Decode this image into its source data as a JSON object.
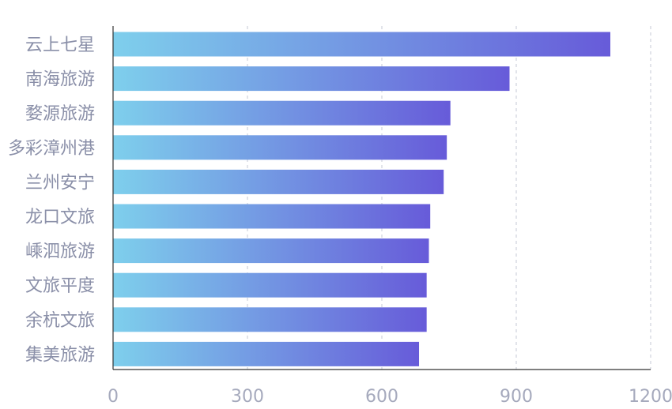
{
  "chart_data": {
    "type": "bar",
    "orientation": "horizontal",
    "categories": [
      "云上七星",
      "南海旅游",
      "婺源旅游",
      "多彩漳州港",
      "兰州安宁",
      "龙口文旅",
      "嵊泗旅游",
      "文旅平度",
      "余杭文旅",
      "集美旅游"
    ],
    "values": [
      1110,
      885,
      753,
      745,
      738,
      708,
      705,
      700,
      700,
      683
    ],
    "xlim": [
      0,
      1200
    ],
    "xticks": [
      "0",
      "300",
      "600",
      "900",
      "1200"
    ],
    "grid": true,
    "title": "",
    "xlabel": "",
    "ylabel": ""
  },
  "colors": {
    "bar_gradient_start": "#7ecfec",
    "bar_gradient_end": "#675bd9",
    "gridline": "#cfd2dc",
    "axis": "#333333",
    "label": "#8a8fa8"
  }
}
